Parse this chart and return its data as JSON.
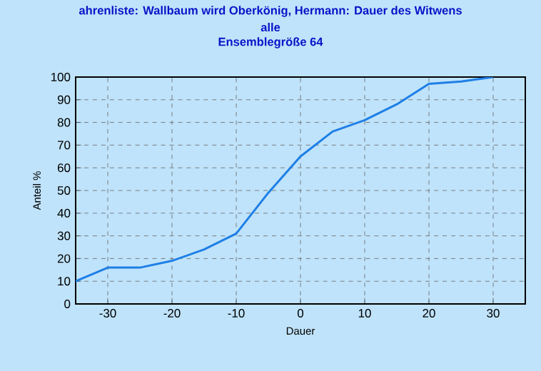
{
  "chart_data": {
    "type": "line",
    "title": "ahrenliste: Wallbaum wird Oberkönig, Hermann: Dauer des Witwens",
    "subtitle": "alle",
    "annotations": [
      "Ensemblegröße 64"
    ],
    "xlabel": "Dauer",
    "ylabel": "Anteil %",
    "x": [
      -35,
      -30,
      -25,
      -20,
      -15,
      -10,
      -5,
      0,
      5,
      10,
      15,
      20,
      25,
      30
    ],
    "series": [
      {
        "color": "#1e7fe6",
        "values": [
          10,
          16,
          16,
          19,
          24,
          31,
          49,
          65,
          76,
          81,
          88,
          97,
          98,
          100
        ]
      }
    ],
    "xlim": [
      -35,
      35
    ],
    "ylim": [
      0,
      100
    ],
    "xticks": [
      -30,
      -20,
      -10,
      0,
      10,
      20,
      30
    ],
    "yticks": [
      0,
      10,
      20,
      30,
      40,
      50,
      60,
      70,
      80,
      90,
      100
    ],
    "grid": true,
    "marker": "none",
    "line_style": "solid"
  }
}
